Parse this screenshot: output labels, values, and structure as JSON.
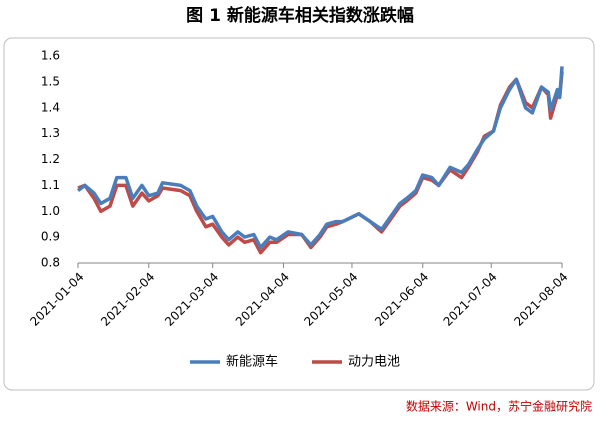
{
  "chart_data": {
    "type": "line",
    "title": "图 1  新能源车相关指数涨跌幅",
    "source": "数据来源：Wind，苏宁金融研究院",
    "x": [
      "2021-01-04",
      "2021-01-07",
      "2021-01-11",
      "2021-01-14",
      "2021-01-18",
      "2021-01-21",
      "2021-01-25",
      "2021-01-28",
      "2021-02-01",
      "2021-02-04",
      "2021-02-08",
      "2021-02-10",
      "2021-02-18",
      "2021-02-22",
      "2021-02-25",
      "2021-03-01",
      "2021-03-04",
      "2021-03-08",
      "2021-03-11",
      "2021-03-15",
      "2021-03-18",
      "2021-03-22",
      "2021-03-25",
      "2021-03-29",
      "2021-04-01",
      "2021-04-06",
      "2021-04-12",
      "2021-04-16",
      "2021-04-20",
      "2021-04-23",
      "2021-04-27",
      "2021-04-30",
      "2021-05-07",
      "2021-05-12",
      "2021-05-17",
      "2021-05-21",
      "2021-05-25",
      "2021-05-28",
      "2021-06-01",
      "2021-06-04",
      "2021-06-08",
      "2021-06-11",
      "2021-06-16",
      "2021-06-21",
      "2021-06-24",
      "2021-06-28",
      "2021-07-01",
      "2021-07-05",
      "2021-07-08",
      "2021-07-12",
      "2021-07-15",
      "2021-07-19",
      "2021-07-22",
      "2021-07-26",
      "2021-07-29",
      "2021-07-30",
      "2021-08-02",
      "2021-08-03",
      "2021-08-04"
    ],
    "series": [
      {
        "name": "新能源车",
        "color": "#4a7ebb",
        "values": [
          1.08,
          1.1,
          1.07,
          1.03,
          1.05,
          1.13,
          1.13,
          1.05,
          1.1,
          1.06,
          1.07,
          1.11,
          1.1,
          1.08,
          1.02,
          0.97,
          0.98,
          0.92,
          0.89,
          0.92,
          0.9,
          0.91,
          0.86,
          0.9,
          0.89,
          0.92,
          0.91,
          0.87,
          0.91,
          0.95,
          0.96,
          0.96,
          0.99,
          0.96,
          0.93,
          0.98,
          1.03,
          1.05,
          1.08,
          1.14,
          1.13,
          1.1,
          1.17,
          1.15,
          1.18,
          1.24,
          1.28,
          1.31,
          1.4,
          1.47,
          1.51,
          1.4,
          1.38,
          1.48,
          1.46,
          1.39,
          1.47,
          1.44,
          1.56
        ]
      },
      {
        "name": "动力电池",
        "color": "#be4b48",
        "values": [
          1.09,
          1.1,
          1.05,
          1.0,
          1.02,
          1.1,
          1.1,
          1.02,
          1.07,
          1.04,
          1.06,
          1.09,
          1.08,
          1.06,
          1.0,
          0.94,
          0.95,
          0.9,
          0.87,
          0.9,
          0.88,
          0.89,
          0.84,
          0.88,
          0.88,
          0.91,
          0.91,
          0.86,
          0.9,
          0.94,
          0.95,
          0.96,
          0.99,
          0.96,
          0.92,
          0.97,
          1.02,
          1.04,
          1.07,
          1.13,
          1.12,
          1.1,
          1.16,
          1.13,
          1.17,
          1.23,
          1.29,
          1.31,
          1.41,
          1.48,
          1.51,
          1.42,
          1.4,
          1.48,
          1.45,
          1.36,
          1.45,
          1.44,
          1.54
        ]
      }
    ],
    "xlim": [
      "2021-01-04",
      "2021-08-04"
    ],
    "xticks": [
      "2021-01-04",
      "2021-02-04",
      "2021-03-04",
      "2021-04-04",
      "2021-05-04",
      "2021-06-04",
      "2021-07-04",
      "2021-08-04"
    ],
    "ylim": [
      0.8,
      1.6
    ],
    "yticks": [
      0.8,
      0.9,
      {
        "value": 1.0,
        "label": "1.0"
      },
      1.1,
      1.2,
      1.3,
      1.4,
      1.5,
      1.6
    ],
    "legend": "bottom"
  }
}
